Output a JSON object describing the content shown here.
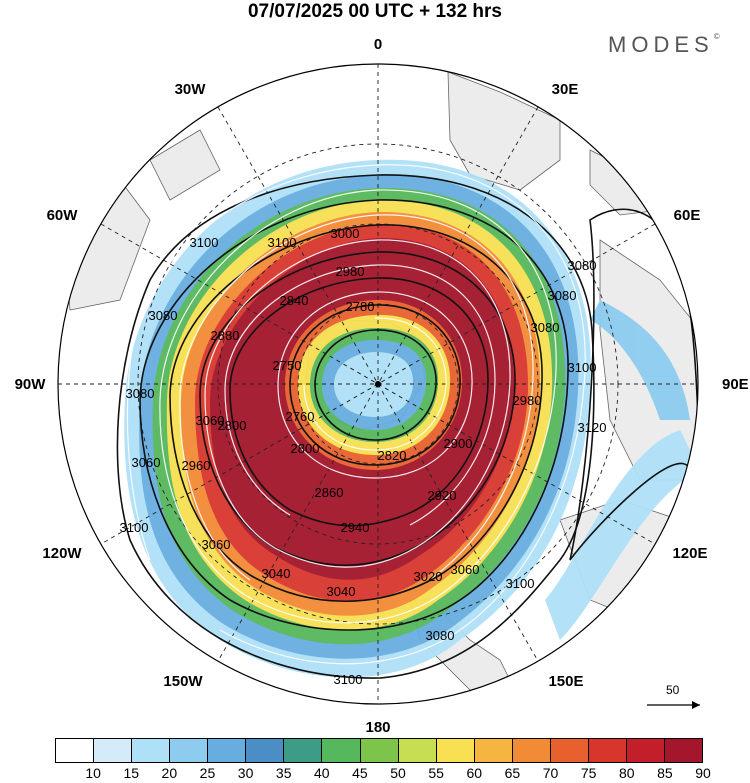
{
  "header": {
    "title": "07/07/2025  00 UTC  + 132 hrs",
    "brand": "MODES",
    "brand_mark": "©"
  },
  "map": {
    "projection": "south polar stereographic",
    "meridian_labels": [
      "0",
      "30E",
      "60E",
      "90E",
      "120E",
      "150E",
      "180",
      "150W",
      "120W",
      "90W",
      "60W",
      "30W"
    ],
    "contour_labels": [
      "3000",
      "2980",
      "2780",
      "2840",
      "2750",
      "2880",
      "3080",
      "3100",
      "3100",
      "3060",
      "3080",
      "3060",
      "2960",
      "2800",
      "3080",
      "3120",
      "3080",
      "2980",
      "2800",
      "2760",
      "2900",
      "2820",
      "2860",
      "2920",
      "2940",
      "3020",
      "3040",
      "3040",
      "3060",
      "3060",
      "3080",
      "3100",
      "3100",
      "3080",
      "3100",
      "3100"
    ],
    "wind_scale_label": "50"
  },
  "colorbar": {
    "colors": [
      "#ffffff",
      "#d4ecfa",
      "#aee0f8",
      "#8dccef",
      "#68ade0",
      "#4b8ec6",
      "#3d9c85",
      "#56b85c",
      "#7cc44a",
      "#c7de52",
      "#f8e052",
      "#f6b441",
      "#f28b36",
      "#e8602e",
      "#d8362d",
      "#c21f2b",
      "#a3162b"
    ],
    "tick_labels": [
      "10",
      "15",
      "20",
      "25",
      "30",
      "35",
      "40",
      "45",
      "50",
      "55",
      "60",
      "65",
      "70",
      "75",
      "80",
      "85",
      "90"
    ]
  }
}
